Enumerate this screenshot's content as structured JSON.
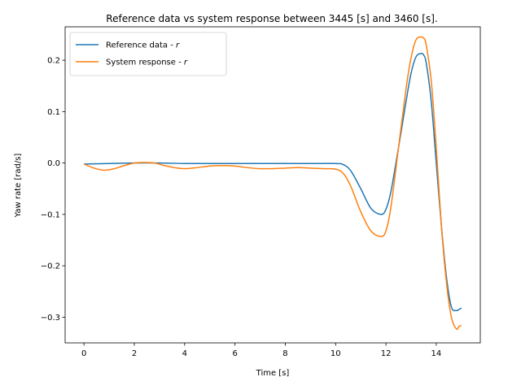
{
  "chart_data": {
    "type": "line",
    "title": "Reference data vs system response between 3445 [s] and 3460 [s].",
    "xlabel": "Time [s]",
    "ylabel": "Yaw rate [rad/s]",
    "xlim": [
      -0.75,
      15.75
    ],
    "ylim": [
      -0.35,
      0.265
    ],
    "xticks": [
      0,
      2,
      4,
      6,
      8,
      10,
      12,
      14
    ],
    "xtick_labels": [
      "0",
      "2",
      "4",
      "6",
      "8",
      "10",
      "12",
      "14"
    ],
    "yticks": [
      -0.3,
      -0.2,
      -0.1,
      0.0,
      0.1,
      0.2
    ],
    "ytick_labels": [
      "−0.3",
      "−0.2",
      "−0.1",
      "0.0",
      "0.1",
      "0.2"
    ],
    "grid": false,
    "legend_position": "top-left",
    "series": [
      {
        "name": "Reference data - ",
        "name_italic": "r",
        "color": "#1f77b4",
        "x": [
          0,
          1,
          2,
          3,
          4,
          5,
          6,
          7,
          8,
          9,
          10,
          10.3,
          10.6,
          11,
          11.4,
          11.8,
          12,
          12.2,
          12.5,
          12.8,
          13,
          13.2,
          13.4,
          13.5,
          13.6,
          13.8,
          14,
          14.2,
          14.4,
          14.6,
          14.8,
          14.9,
          15
        ],
        "values": [
          -0.002,
          -0.001,
          0.0,
          0.0,
          -0.001,
          -0.001,
          -0.001,
          -0.001,
          -0.001,
          -0.001,
          -0.001,
          -0.003,
          -0.015,
          -0.05,
          -0.088,
          -0.1,
          -0.09,
          -0.055,
          0.03,
          0.12,
          0.175,
          0.207,
          0.213,
          0.21,
          0.195,
          0.12,
          0.0,
          -0.12,
          -0.22,
          -0.28,
          -0.287,
          -0.285,
          -0.282
        ]
      },
      {
        "name": "System response - ",
        "name_italic": "r",
        "color": "#ff7f0e",
        "x": [
          0,
          0.4,
          0.8,
          1.2,
          1.6,
          2,
          2.4,
          2.8,
          3.2,
          3.6,
          4,
          4.5,
          5,
          5.5,
          6,
          6.5,
          7,
          7.5,
          8,
          8.5,
          9,
          9.5,
          10,
          10.3,
          10.6,
          11,
          11.4,
          11.8,
          12,
          12.2,
          12.5,
          12.8,
          13,
          13.2,
          13.4,
          13.5,
          13.6,
          13.8,
          14,
          14.2,
          14.4,
          14.6,
          14.8,
          14.9,
          15
        ],
        "values": [
          -0.002,
          -0.01,
          -0.014,
          -0.011,
          -0.005,
          0.0,
          0.001,
          0.0,
          -0.005,
          -0.009,
          -0.011,
          -0.009,
          -0.006,
          -0.005,
          -0.006,
          -0.009,
          -0.011,
          -0.011,
          -0.01,
          -0.009,
          -0.01,
          -0.011,
          -0.012,
          -0.02,
          -0.045,
          -0.095,
          -0.132,
          -0.143,
          -0.132,
          -0.085,
          0.03,
          0.145,
          0.205,
          0.24,
          0.245,
          0.243,
          0.23,
          0.16,
          0.03,
          -0.12,
          -0.23,
          -0.3,
          -0.323,
          -0.318,
          -0.316
        ]
      }
    ]
  }
}
